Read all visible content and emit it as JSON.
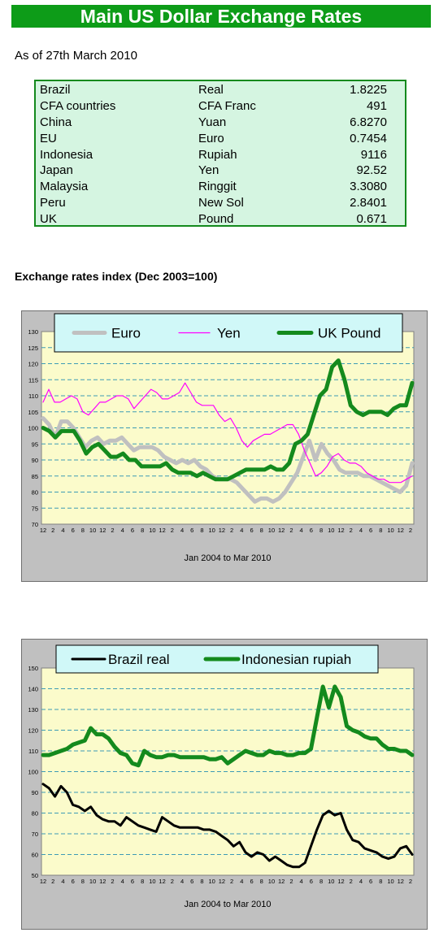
{
  "header": {
    "title": "Main US Dollar Exchange Rates"
  },
  "as_of": "As of 27th March 2010",
  "rates_table": [
    {
      "country": "Brazil",
      "currency": "Real",
      "rate": "1.8225"
    },
    {
      "country": "CFA countries",
      "currency": "CFA Franc",
      "rate": "491"
    },
    {
      "country": "China",
      "currency": "Yuan",
      "rate": "6.8270"
    },
    {
      "country": "EU",
      "currency": "Euro",
      "rate": "0.7454"
    },
    {
      "country": "Indonesia",
      "currency": "Rupiah",
      "rate": "9116"
    },
    {
      "country": "Japan",
      "currency": "Yen",
      "rate": "92.52"
    },
    {
      "country": "Malaysia",
      "currency": "Ringgit",
      "rate": "3.3080"
    },
    {
      "country": "Peru",
      "currency": "New Sol",
      "rate": "2.8401"
    },
    {
      "country": "UK",
      "currency": "Pound",
      "rate": "0.671"
    }
  ],
  "section_title": "Exchange rates index (Dec 2003=100)",
  "chart_data": [
    {
      "type": "line",
      "title": "",
      "xlabel": "Jan 2004  to Mar 2010",
      "ylabel": "",
      "ylim": [
        70,
        130
      ],
      "yticks": [
        70,
        75,
        80,
        85,
        90,
        95,
        100,
        105,
        110,
        115,
        120,
        125,
        130
      ],
      "xtick_labels": [
        "12",
        "2",
        "4",
        "6",
        "8",
        "10",
        "12",
        "2",
        "4",
        "6",
        "8",
        "10",
        "12",
        "2",
        "4",
        "6",
        "8",
        "10",
        "12",
        "2",
        "4",
        "6",
        "8",
        "10",
        "12",
        "2",
        "4",
        "6",
        "8",
        "10",
        "12",
        "2",
        "4",
        "6",
        "8",
        "10",
        "12",
        "2"
      ],
      "legend": "top",
      "plot_bg": "#fbfbcb",
      "grid": true,
      "series": [
        {
          "name": "Euro",
          "color": "#c0c0c0",
          "values": [
            103,
            101,
            97,
            102,
            102,
            100,
            97,
            94,
            96,
            97,
            95,
            96,
            96,
            97,
            95,
            93,
            94,
            94,
            94,
            93,
            91,
            90,
            89,
            90,
            89,
            90,
            88,
            87,
            85,
            84,
            84,
            84,
            83,
            81,
            79,
            77,
            78,
            78,
            77,
            78,
            80,
            83,
            86,
            91,
            96,
            90,
            95,
            92,
            90,
            87,
            86,
            86,
            86,
            85,
            85,
            84,
            83,
            82,
            81,
            80,
            82,
            89
          ]
        },
        {
          "name": "Yen",
          "color": "#ff00ff",
          "values": [
            108,
            112,
            108,
            108,
            109,
            110,
            109,
            105,
            104,
            106,
            108,
            108,
            109,
            110,
            110,
            109,
            106,
            108,
            110,
            112,
            111,
            109,
            109,
            110,
            111,
            114,
            111,
            108,
            107,
            107,
            107,
            104,
            102,
            103,
            100,
            96,
            94,
            96,
            97,
            98,
            98,
            99,
            100,
            101,
            101,
            98,
            93,
            89,
            85,
            86,
            88,
            91,
            92,
            90,
            89,
            89,
            88,
            86,
            85,
            84,
            84,
            83,
            83,
            83,
            84,
            85
          ]
        },
        {
          "name": "UK Pound",
          "color": "#148a1d",
          "values": [
            100,
            99,
            97,
            99,
            99,
            99,
            96,
            92,
            94,
            95,
            93,
            91,
            91,
            92,
            90,
            90,
            88,
            88,
            88,
            88,
            89,
            87,
            86,
            86,
            86,
            85,
            86,
            85,
            84,
            84,
            84,
            85,
            86,
            87,
            87,
            87,
            87,
            88,
            87,
            87,
            89,
            95,
            96,
            98,
            104,
            110,
            112,
            119,
            121,
            115,
            107,
            105,
            104,
            105,
            105,
            105,
            104,
            106,
            107,
            107,
            114
          ]
        }
      ]
    },
    {
      "type": "line",
      "title": "",
      "xlabel": "Jan 2004  to Mar  2010",
      "ylabel": "",
      "ylim": [
        50,
        150
      ],
      "yticks": [
        50,
        60,
        70,
        80,
        90,
        100,
        110,
        120,
        130,
        140,
        150
      ],
      "xtick_labels": [
        "12",
        "2",
        "4",
        "6",
        "8",
        "10",
        "12",
        "2",
        "4",
        "6",
        "8",
        "10",
        "12",
        "2",
        "4",
        "6",
        "8",
        "10",
        "12",
        "2",
        "4",
        "6",
        "8",
        "10",
        "12",
        "2",
        "4",
        "6",
        "8",
        "10",
        "12",
        "2",
        "4",
        "6",
        "8",
        "10",
        "12",
        "2"
      ],
      "legend": "top",
      "plot_bg": "#fbfbcb",
      "grid": true,
      "series": [
        {
          "name": "Brazil real",
          "color": "#000000",
          "values": [
            94,
            92,
            88,
            93,
            90,
            84,
            83,
            81,
            83,
            79,
            77,
            76,
            76,
            74,
            78,
            76,
            74,
            73,
            72,
            71,
            78,
            76,
            74,
            73,
            73,
            73,
            73,
            72,
            72,
            71,
            69,
            67,
            64,
            66,
            61,
            59,
            61,
            60,
            57,
            59,
            57,
            55,
            54,
            54,
            56,
            64,
            72,
            79,
            81,
            79,
            80,
            72,
            67,
            66,
            63,
            62,
            61,
            59,
            58,
            59,
            63,
            64,
            60
          ]
        },
        {
          "name": "Indonesian rupiah",
          "color": "#148a1d",
          "values": [
            108,
            108,
            109,
            110,
            111,
            113,
            114,
            115,
            121,
            118,
            118,
            116,
            112,
            109,
            108,
            104,
            103,
            110,
            108,
            107,
            107,
            108,
            108,
            107,
            107,
            107,
            107,
            107,
            106,
            106,
            107,
            104,
            106,
            108,
            110,
            109,
            108,
            108,
            110,
            109,
            109,
            108,
            108,
            109,
            109,
            111,
            126,
            141,
            131,
            141,
            136,
            122,
            120,
            119,
            117,
            116,
            116,
            113,
            111,
            111,
            110,
            110,
            108
          ]
        }
      ]
    }
  ]
}
